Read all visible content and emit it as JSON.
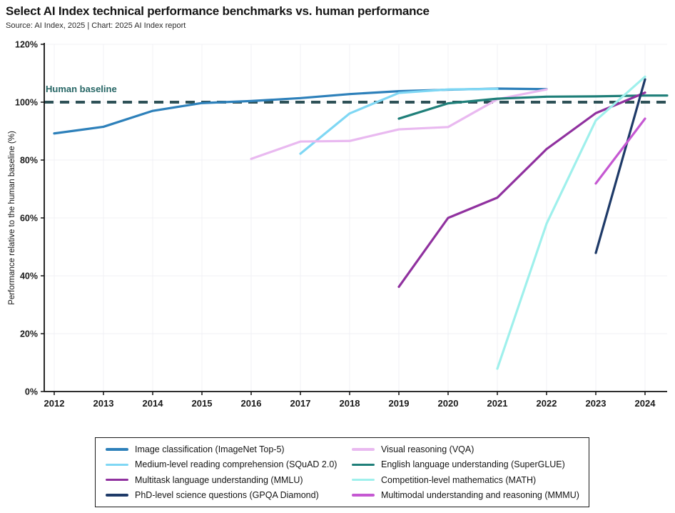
{
  "header": {
    "title": "Select AI Index technical performance benchmarks vs. human performance",
    "source": "Source: AI Index, 2025 | Chart: 2025 AI Index report"
  },
  "chart_data": {
    "type": "line",
    "title": "Select AI Index technical performance benchmarks vs. human performance",
    "xlabel": "",
    "ylabel": "Performance relative to the human baseline (%)",
    "xlim": [
      2012,
      2024
    ],
    "ylim": [
      0,
      120
    ],
    "grid": true,
    "x_ticks": [
      2012,
      2013,
      2014,
      2015,
      2016,
      2017,
      2018,
      2019,
      2020,
      2021,
      2022,
      2023,
      2024
    ],
    "y_ticks": [
      {
        "value": 0,
        "label": "0%"
      },
      {
        "value": 20,
        "label": "20%"
      },
      {
        "value": 40,
        "label": "40%"
      },
      {
        "value": 60,
        "label": "60%"
      },
      {
        "value": 80,
        "label": "80%"
      },
      {
        "value": 100,
        "label": "100%"
      },
      {
        "value": 120,
        "label": "120%"
      }
    ],
    "baseline": {
      "label": "Human baseline",
      "value": 100,
      "line_color": "#2E5157",
      "label_color": "#266665"
    },
    "series": [
      {
        "id": "imagenet",
        "name": "Image classification (ImageNet Top-5)",
        "color": "#2D80BA",
        "x": [
          2012,
          2013,
          2014,
          2015,
          2016,
          2017,
          2018,
          2019,
          2020,
          2021,
          2022
        ],
        "values": [
          89.2,
          91.5,
          97.0,
          99.7,
          100.4,
          101.4,
          102.8,
          103.8,
          104.3,
          104.7,
          104.5
        ]
      },
      {
        "id": "squad",
        "name": "Medium-level reading comprehension (SQuAD 2.0)",
        "color": "#7FD7F4",
        "x": [
          2017,
          2018,
          2019,
          2020,
          2021
        ],
        "values": [
          82.2,
          96.1,
          103.2,
          104.4,
          104.6
        ]
      },
      {
        "id": "mmlu",
        "name": "Multitask language understanding (MMLU)",
        "color": "#90319F",
        "x": [
          2019,
          2020,
          2021,
          2022,
          2023,
          2024
        ],
        "values": [
          36.2,
          60.0,
          67.0,
          83.8,
          96.2,
          103.3
        ]
      },
      {
        "id": "gpqa",
        "name": "PhD-level science questions (GPQA Diamond)",
        "color": "#1E3A68",
        "x": [
          2023,
          2024
        ],
        "values": [
          47.9,
          107.9
        ]
      },
      {
        "id": "vqa",
        "name": "Visual reasoning (VQA)",
        "color": "#E9B9F0",
        "x": [
          2016,
          2017,
          2018,
          2019,
          2020,
          2021,
          2022
        ],
        "values": [
          80.4,
          86.4,
          86.6,
          90.6,
          91.4,
          101.0,
          104.4
        ]
      },
      {
        "id": "superglue",
        "name": "English language understanding (SuperGLUE)",
        "color": "#1F7F79",
        "x": [
          2019,
          2020,
          2021,
          2022,
          2023,
          2024
        ],
        "values": [
          94.3,
          99.6,
          101.2,
          101.9,
          102.0,
          102.3
        ],
        "extend_right": true
      },
      {
        "id": "math",
        "name": "Competition-level mathematics (MATH)",
        "color": "#9FF0EC",
        "x": [
          2021,
          2022,
          2023,
          2024
        ],
        "values": [
          7.9,
          58.0,
          93.7,
          108.8
        ]
      },
      {
        "id": "mmmu",
        "name": "Multimodal understanding and reasoning (MMMU)",
        "color": "#C558D2",
        "x": [
          2023,
          2024
        ],
        "values": [
          71.9,
          94.3
        ]
      }
    ],
    "draw_order": [
      "imagenet",
      "squad",
      "vqa",
      "superglue",
      "mmlu",
      "gpqa",
      "math",
      "mmmu"
    ],
    "legend": {
      "position": "bottom",
      "columns": 2,
      "col1": [
        "imagenet",
        "squad",
        "mmlu",
        "gpqa"
      ],
      "col2": [
        "vqa",
        "superglue",
        "math",
        "mmmu"
      ]
    }
  },
  "style_colors": {
    "axis": "#111111",
    "grid": "#F1F1F5",
    "tick_label": "#1a1a1a"
  }
}
